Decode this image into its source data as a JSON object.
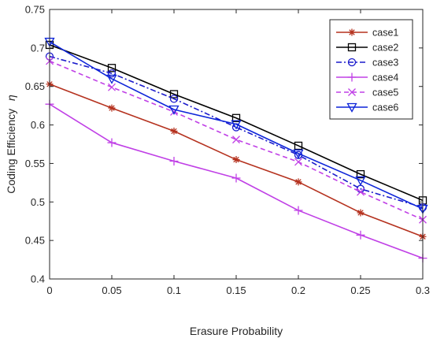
{
  "chart_data": {
    "type": "line",
    "title": "",
    "xlabel": "Erasure Probability",
    "ylabel": "Coding Efficiency",
    "ylabel_symbol": "η",
    "xlim": [
      0,
      0.3
    ],
    "ylim": [
      0.4,
      0.75
    ],
    "x": [
      0,
      0.05,
      0.1,
      0.15,
      0.2,
      0.25,
      0.3
    ],
    "x_ticks": [
      "0",
      "0.05",
      "0.1",
      "0.15",
      "0.2",
      "0.25",
      "0.3"
    ],
    "y_ticks": [
      "0.4",
      "0.45",
      "0.5",
      "0.55",
      "0.6",
      "0.65",
      "0.7",
      "0.75"
    ],
    "grid": false,
    "legend_position": "top-right",
    "series": [
      {
        "name": "case1",
        "values": [
          0.653,
          0.622,
          0.592,
          0.555,
          0.526,
          0.486,
          0.455
        ],
        "color": "#b5321f",
        "marker": "asterisk",
        "line_style": "solid"
      },
      {
        "name": "case2",
        "values": [
          0.704,
          0.674,
          0.64,
          0.609,
          0.573,
          0.536,
          0.502
        ],
        "color": "#000000",
        "marker": "square",
        "line_style": "solid"
      },
      {
        "name": "case3",
        "values": [
          0.689,
          0.667,
          0.634,
          0.597,
          0.561,
          0.517,
          0.493
        ],
        "color": "#1a1acc",
        "marker": "circle",
        "line_style": "dashdot"
      },
      {
        "name": "case4",
        "values": [
          0.627,
          0.577,
          0.553,
          0.531,
          0.489,
          0.457,
          0.427
        ],
        "color": "#c040e6",
        "marker": "plus",
        "line_style": "solid"
      },
      {
        "name": "case5",
        "values": [
          0.683,
          0.649,
          0.617,
          0.581,
          0.552,
          0.513,
          0.477
        ],
        "color": "#c040e6",
        "marker": "x",
        "line_style": "dashed"
      },
      {
        "name": "case6",
        "values": [
          0.708,
          0.66,
          0.62,
          0.601,
          0.563,
          0.528,
          0.491
        ],
        "color": "#0d24d9",
        "marker": "triangle-down",
        "line_style": "solid"
      }
    ]
  }
}
